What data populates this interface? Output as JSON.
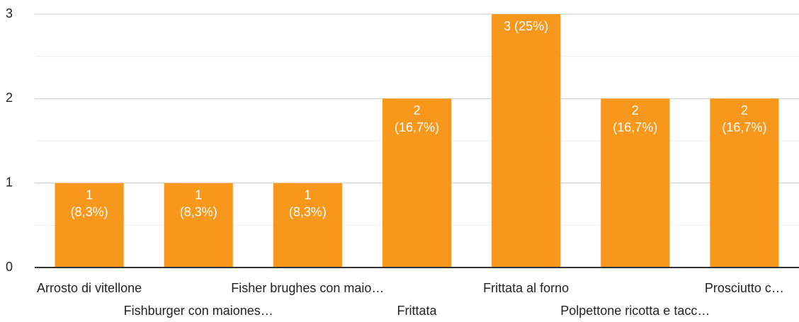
{
  "chart_data": {
    "type": "bar",
    "categories": [
      "Arrosto di vitellone",
      "Fishburger con maiones…",
      "Fisher brughes con maio…",
      "Frittata",
      "Frittata al forno",
      "Polpettone ricotta e tacc…",
      "Prosciutto c…"
    ],
    "values": [
      1,
      1,
      1,
      2,
      3,
      2,
      2
    ],
    "value_labels": [
      [
        "1",
        "(8,3%)"
      ],
      [
        "1",
        "(8,3%)"
      ],
      [
        "1",
        "(8,3%)"
      ],
      [
        "2",
        "(16,7%)"
      ],
      [
        "3 (25%)"
      ],
      [
        "2",
        "(16,7%)"
      ],
      [
        "2",
        "(16,7%)"
      ]
    ],
    "color": "#f7981d",
    "ylim": [
      0,
      3
    ],
    "yticks": [
      0,
      1,
      2,
      3
    ],
    "grid": true
  }
}
